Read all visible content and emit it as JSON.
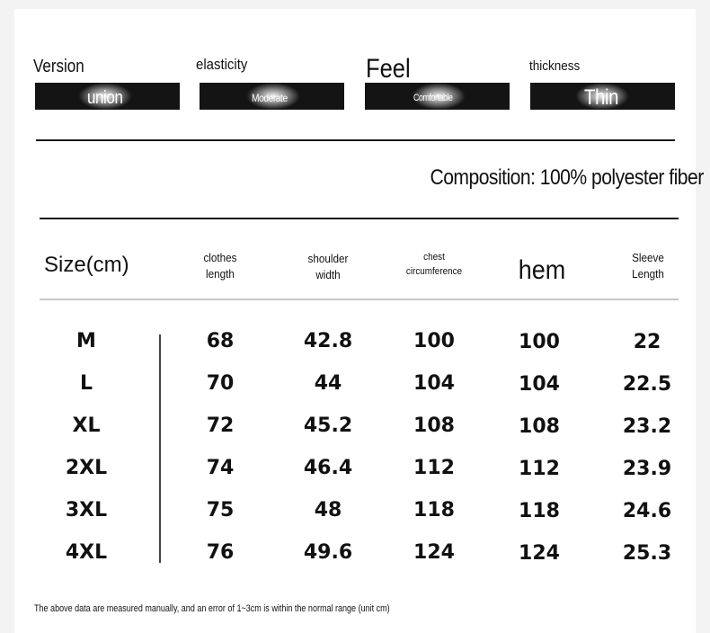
{
  "attributes": [
    {
      "label": "Version",
      "value": "union"
    },
    {
      "label": "elasticity",
      "value": "Moderate"
    },
    {
      "label": "Feel",
      "value": "Comfortable"
    },
    {
      "label": "thickness",
      "value": "Thin"
    }
  ],
  "composition": "Composition: 100% polyester fiber",
  "table": {
    "size_header": "Size(cm)",
    "columns": [
      {
        "line1": "clothes",
        "line2": "length"
      },
      {
        "line1": "shoulder",
        "line2": "width"
      },
      {
        "line1": "chest",
        "line2": "circumference"
      },
      {
        "line1": "hem",
        "line2": ""
      },
      {
        "line1": "Sleeve",
        "line2": "Length"
      }
    ],
    "rows": [
      {
        "size": "M",
        "values": [
          "68",
          "42.8",
          "100",
          "100",
          "22"
        ]
      },
      {
        "size": "L",
        "values": [
          "70",
          "44",
          "104",
          "104",
          "22.5"
        ]
      },
      {
        "size": "XL",
        "values": [
          "72",
          "45.2",
          "108",
          "108",
          "23.2"
        ]
      },
      {
        "size": "2XL",
        "values": [
          "74",
          "46.4",
          "112",
          "112",
          "23.9"
        ]
      },
      {
        "size": "3XL",
        "values": [
          "75",
          "48",
          "118",
          "118",
          "24.6"
        ]
      },
      {
        "size": "4XL",
        "values": [
          "76",
          "49.6",
          "124",
          "124",
          "25.3"
        ]
      }
    ]
  },
  "footnote": "The above data are measured manually, and an error of 1~3cm is within the normal range (unit cm)",
  "colors": {
    "bar": "#141414",
    "text": "#111111",
    "background": "#ffffff"
  }
}
